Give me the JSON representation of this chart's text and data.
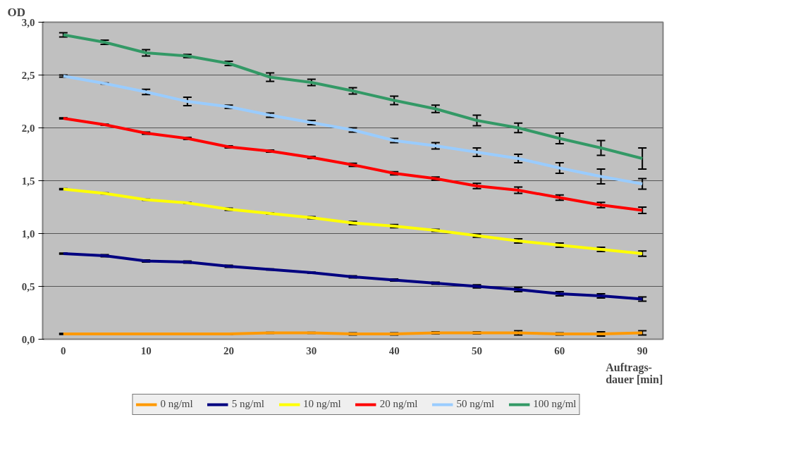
{
  "chart_data": {
    "type": "line",
    "ylabel": "OD",
    "xlabel": "Auftrags-\ndauer [min]",
    "categories": [
      "0",
      null,
      "10",
      null,
      "20",
      null,
      "30",
      null,
      "40",
      null,
      "50",
      null,
      "60",
      null,
      "90"
    ],
    "ylim": [
      0,
      3
    ],
    "yticks": [
      {
        "value": 0,
        "label": "0,0"
      },
      {
        "value": 0.5,
        "label": "0,5"
      },
      {
        "value": 1,
        "label": "1,0"
      },
      {
        "value": 1.5,
        "label": "1,5"
      },
      {
        "value": 2,
        "label": "2,0"
      },
      {
        "value": 2.5,
        "label": "2,5"
      },
      {
        "value": 3,
        "label": "3,0"
      }
    ],
    "grid": "y",
    "legend": "bottom",
    "marker": "none",
    "line_style": "solid",
    "series": [
      {
        "name": "0 ng/ml",
        "color": "#ff9900",
        "values": [
          0.05,
          0.05,
          0.05,
          0.05,
          0.05,
          0.06,
          0.06,
          0.05,
          0.05,
          0.06,
          0.06,
          0.06,
          0.05,
          0.05,
          0.06
        ],
        "errors": [
          0.005,
          0.005,
          0.005,
          0.005,
          0.005,
          0.005,
          0.005,
          0.01,
          0.01,
          0.01,
          0.01,
          0.02,
          0.01,
          0.02,
          0.02
        ]
      },
      {
        "name": "5 ng/ml",
        "color": "#000080",
        "values": [
          0.81,
          0.79,
          0.74,
          0.73,
          0.69,
          0.66,
          0.63,
          0.59,
          0.56,
          0.53,
          0.5,
          0.47,
          0.43,
          0.41,
          0.38
        ],
        "errors": [
          0.005,
          0.01,
          0.01,
          0.01,
          0.01,
          0.005,
          0.005,
          0.01,
          0.01,
          0.01,
          0.015,
          0.02,
          0.02,
          0.02,
          0.02
        ]
      },
      {
        "name": "10 ng/ml",
        "color": "#ffff00",
        "values": [
          1.42,
          1.38,
          1.32,
          1.29,
          1.23,
          1.19,
          1.15,
          1.1,
          1.07,
          1.03,
          0.98,
          0.93,
          0.89,
          0.85,
          0.81
        ],
        "errors": [
          0.005,
          0.005,
          0.005,
          0.005,
          0.01,
          0.005,
          0.01,
          0.015,
          0.015,
          0.01,
          0.015,
          0.02,
          0.02,
          0.02,
          0.025
        ]
      },
      {
        "name": "20 ng/ml",
        "color": "#ff0000",
        "values": [
          2.09,
          2.03,
          1.95,
          1.9,
          1.82,
          1.78,
          1.72,
          1.65,
          1.57,
          1.52,
          1.45,
          1.41,
          1.34,
          1.27,
          1.22
        ],
        "errors": [
          0.005,
          0.005,
          0.01,
          0.01,
          0.01,
          0.01,
          0.01,
          0.015,
          0.015,
          0.015,
          0.025,
          0.03,
          0.025,
          0.025,
          0.03
        ]
      },
      {
        "name": "50 ng/ml",
        "color": "#99ccff",
        "values": [
          2.49,
          2.42,
          2.34,
          2.25,
          2.2,
          2.12,
          2.05,
          1.98,
          1.88,
          1.83,
          1.77,
          1.71,
          1.62,
          1.54,
          1.47
        ],
        "errors": [
          0.01,
          0.005,
          0.025,
          0.04,
          0.015,
          0.02,
          0.02,
          0.02,
          0.02,
          0.03,
          0.04,
          0.04,
          0.05,
          0.07,
          0.05
        ]
      },
      {
        "name": "100 ng/ml",
        "color": "#339966",
        "values": [
          2.88,
          2.81,
          2.71,
          2.68,
          2.61,
          2.48,
          2.43,
          2.35,
          2.26,
          2.18,
          2.07,
          2.0,
          1.9,
          1.81,
          1.71
        ],
        "errors": [
          0.02,
          0.02,
          0.03,
          0.015,
          0.02,
          0.04,
          0.03,
          0.03,
          0.04,
          0.035,
          0.05,
          0.045,
          0.05,
          0.07,
          0.1
        ]
      }
    ]
  }
}
